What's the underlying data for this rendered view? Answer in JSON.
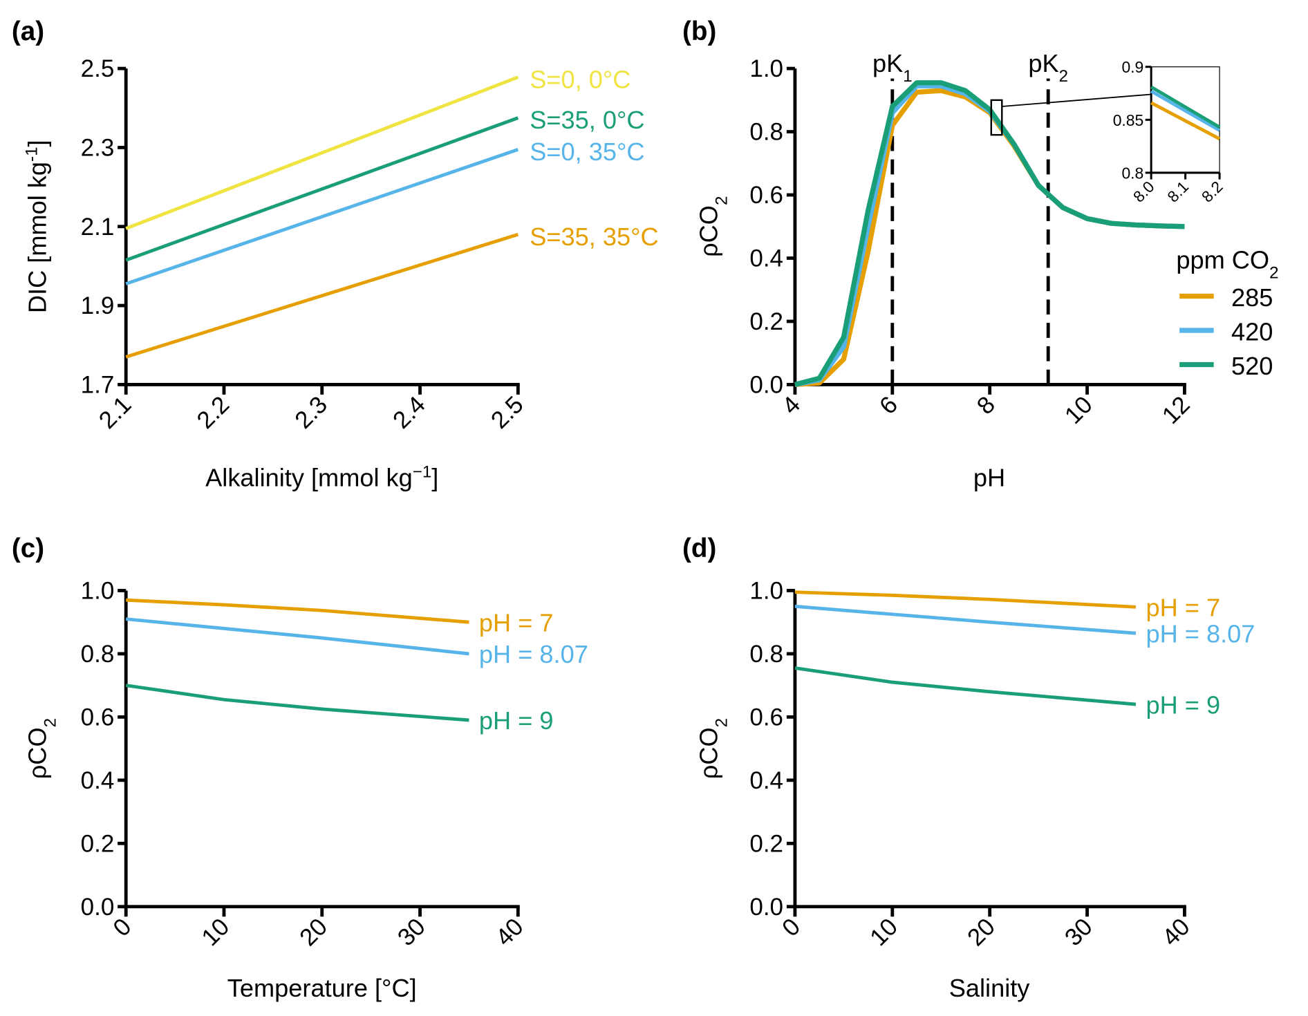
{
  "colors": {
    "yellow": "#f0e442",
    "green": "#1a9e77",
    "blue": "#56b4e9",
    "orange": "#e69f00"
  },
  "chart_data": [
    {
      "panel_label": "(a)",
      "type": "line",
      "xlabel": "Alkalinity [mmol kg",
      "xlabel_sup": "−1",
      "xlabel_end": "]",
      "ylabel": "DIC [mmol kg",
      "ylabel_sup": "-1",
      "ylabel_end": "]",
      "xlim": [
        2.1,
        2.5
      ],
      "ylim": [
        1.7,
        2.5
      ],
      "xticks": [
        "2.1",
        "2.2",
        "2.3",
        "2.4",
        "2.5"
      ],
      "yticks": [
        "1.7",
        "1.9",
        "2.1",
        "2.3",
        "2.5"
      ],
      "series": [
        {
          "name": "S=0, 0°C",
          "color": "yellow",
          "x": [
            2.1,
            2.5
          ],
          "y": [
            2.095,
            2.478
          ]
        },
        {
          "name": "S=35, 0°C",
          "color": "green",
          "x": [
            2.1,
            2.5
          ],
          "y": [
            2.015,
            2.375
          ]
        },
        {
          "name": "S=0, 35°C",
          "color": "blue",
          "x": [
            2.1,
            2.5
          ],
          "y": [
            1.955,
            2.295
          ]
        },
        {
          "name": "S=35, 35°C",
          "color": "orange",
          "x": [
            2.1,
            2.5
          ],
          "y": [
            1.77,
            2.08
          ]
        }
      ]
    },
    {
      "panel_label": "(b)",
      "type": "line",
      "xlabel": "pH",
      "ylabel": "ρCO",
      "ylabel_sub": "2",
      "xlim": [
        4,
        12
      ],
      "ylim": [
        0,
        1
      ],
      "xticks": [
        "4",
        "6",
        "8",
        "10",
        "12"
      ],
      "yticks": [
        "0.0",
        "0.2",
        "0.4",
        "0.6",
        "0.8",
        "1.0"
      ],
      "vlines": [
        {
          "x": 6.0,
          "label": "pK",
          "sub": "1"
        },
        {
          "x": 9.2,
          "label": "pK",
          "sub": "2"
        }
      ],
      "legend_title": "ppm CO",
      "legend_title_sub": "2",
      "legend_position": "right",
      "x": [
        4,
        4.5,
        5,
        5.5,
        6,
        6.5,
        7,
        7.5,
        8,
        8.5,
        9,
        9.5,
        10,
        10.5,
        11,
        11.5,
        12
      ],
      "series": [
        {
          "name": "285",
          "color": "orange",
          "y": [
            0,
            0.005,
            0.08,
            0.42,
            0.82,
            0.925,
            0.93,
            0.91,
            0.86,
            0.755,
            0.63,
            0.56,
            0.525,
            0.51,
            0.505,
            0.502,
            0.5
          ]
        },
        {
          "name": "420",
          "color": "blue",
          "y": [
            0,
            0.015,
            0.12,
            0.5,
            0.86,
            0.945,
            0.945,
            0.92,
            0.865,
            0.76,
            0.63,
            0.56,
            0.525,
            0.51,
            0.505,
            0.502,
            0.5
          ]
        },
        {
          "name": "520",
          "color": "green",
          "y": [
            0,
            0.02,
            0.15,
            0.55,
            0.88,
            0.955,
            0.955,
            0.93,
            0.87,
            0.76,
            0.63,
            0.56,
            0.525,
            0.51,
            0.505,
            0.502,
            0.5
          ]
        }
      ],
      "inset": {
        "xlim": [
          8.0,
          8.2
        ],
        "ylim": [
          0.8,
          0.9
        ],
        "xticks": [
          "8.0",
          "8.1",
          "8.2"
        ],
        "yticks": [
          "0.8",
          "0.85",
          "0.9"
        ],
        "series": [
          {
            "name": "285",
            "x": [
              8.0,
              8.2
            ],
            "y": [
              0.866,
              0.832
            ]
          },
          {
            "name": "420",
            "x": [
              8.0,
              8.2
            ],
            "y": [
              0.877,
              0.84
            ]
          },
          {
            "name": "520",
            "x": [
              8.0,
              8.2
            ],
            "y": [
              0.881,
              0.843
            ]
          }
        ]
      }
    },
    {
      "panel_label": "(c)",
      "type": "line",
      "xlabel": "Temperature [°C]",
      "ylabel": "ρCO",
      "ylabel_sub": "2",
      "xlim": [
        0,
        40
      ],
      "ylim": [
        0,
        1
      ],
      "xticks": [
        "0",
        "10",
        "20",
        "30",
        "40"
      ],
      "yticks": [
        "0.0",
        "0.2",
        "0.4",
        "0.6",
        "0.8",
        "1.0"
      ],
      "x": [
        0,
        10,
        20,
        35
      ],
      "series": [
        {
          "name": "pH = 7",
          "color": "orange",
          "y": [
            0.97,
            0.955,
            0.937,
            0.9
          ]
        },
        {
          "name": "pH = 8.07",
          "color": "blue",
          "y": [
            0.91,
            0.88,
            0.85,
            0.8
          ]
        },
        {
          "name": "pH = 9",
          "color": "green",
          "y": [
            0.7,
            0.655,
            0.625,
            0.59
          ]
        }
      ]
    },
    {
      "panel_label": "(d)",
      "type": "line",
      "xlabel": "Salinity",
      "ylabel": "ρCO",
      "ylabel_sub": "2",
      "xlim": [
        0,
        40
      ],
      "ylim": [
        0,
        1
      ],
      "xticks": [
        "0",
        "10",
        "20",
        "30",
        "40"
      ],
      "yticks": [
        "0.0",
        "0.2",
        "0.4",
        "0.6",
        "0.8",
        "1.0"
      ],
      "x": [
        0,
        10,
        20,
        35
      ],
      "series": [
        {
          "name": "pH = 7",
          "color": "orange",
          "y": [
            0.995,
            0.985,
            0.972,
            0.948
          ]
        },
        {
          "name": "pH = 8.07",
          "color": "blue",
          "y": [
            0.95,
            0.925,
            0.9,
            0.865
          ]
        },
        {
          "name": "pH = 9",
          "color": "green",
          "y": [
            0.755,
            0.71,
            0.68,
            0.64
          ]
        }
      ]
    }
  ]
}
